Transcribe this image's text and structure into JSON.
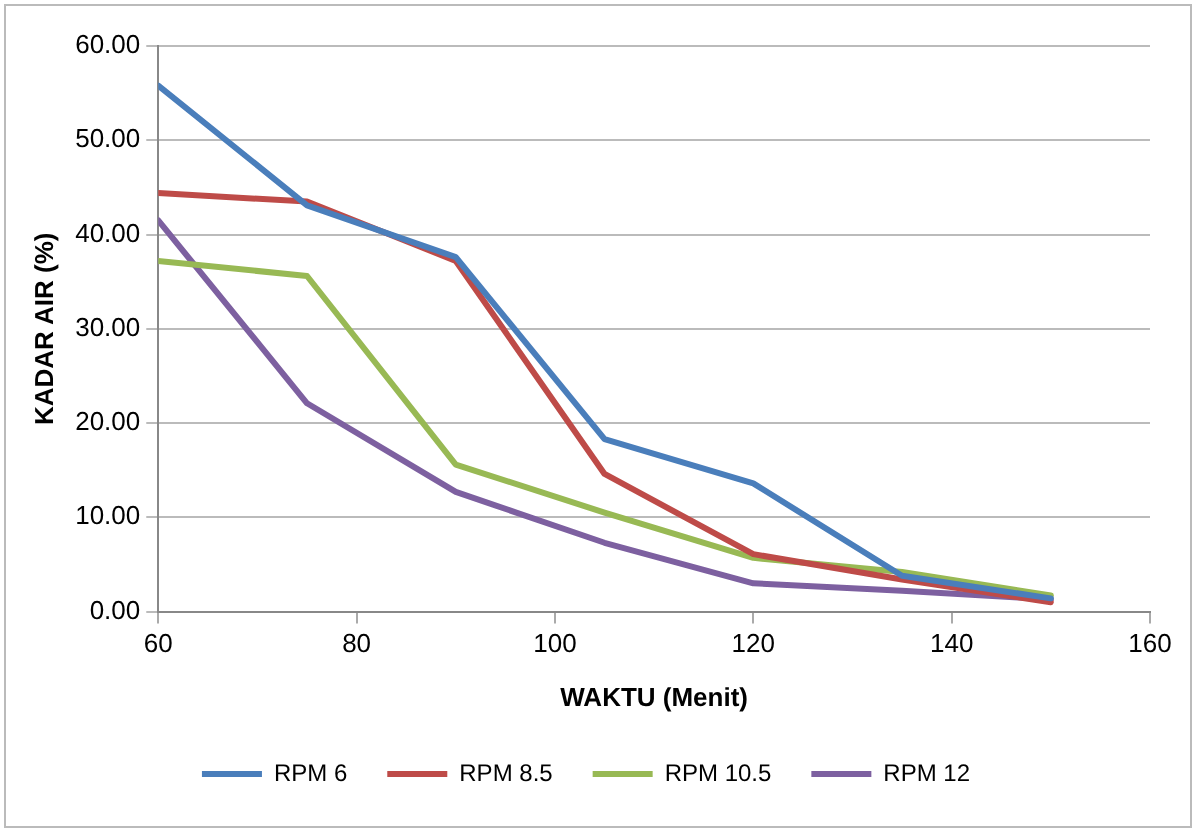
{
  "chart_data": {
    "type": "line",
    "xlabel": "WAKTU (Menit)",
    "ylabel": "KADAR AIR (%)",
    "x": [
      60,
      75,
      90,
      105,
      120,
      135,
      150
    ],
    "series": [
      {
        "name": "RPM 6",
        "color": "#4a7ebb",
        "values": [
          55.8,
          43.1,
          37.6,
          18.3,
          13.6,
          3.8,
          1.4
        ]
      },
      {
        "name": "RPM 8.5",
        "color": "#be4b48",
        "values": [
          44.4,
          43.5,
          37.2,
          14.6,
          6.1,
          3.4,
          1.0
        ]
      },
      {
        "name": "RPM 10.5",
        "color": "#98b954",
        "values": [
          37.2,
          35.6,
          15.6,
          10.5,
          5.7,
          4.2,
          1.7
        ]
      },
      {
        "name": "RPM 12",
        "color": "#7d60a0",
        "values": [
          41.5,
          22.1,
          12.7,
          7.3,
          3.0,
          2.2,
          1.3
        ]
      }
    ],
    "xlim": [
      60,
      160
    ],
    "xticks": [
      60,
      80,
      100,
      120,
      140,
      160
    ],
    "ylim": [
      0,
      60
    ],
    "yticks": [
      {
        "value": 0,
        "label": "0.00"
      },
      {
        "value": 10,
        "label": "10.00"
      },
      {
        "value": 20,
        "label": "20.00"
      },
      {
        "value": 30,
        "label": "30.00"
      },
      {
        "value": 40,
        "label": "40.00"
      },
      {
        "value": 50,
        "label": "50.00"
      },
      {
        "value": 60,
        "label": "60.00"
      }
    ],
    "grid": "y",
    "legend": "bottom",
    "marker": "none",
    "line_style": "solid"
  }
}
